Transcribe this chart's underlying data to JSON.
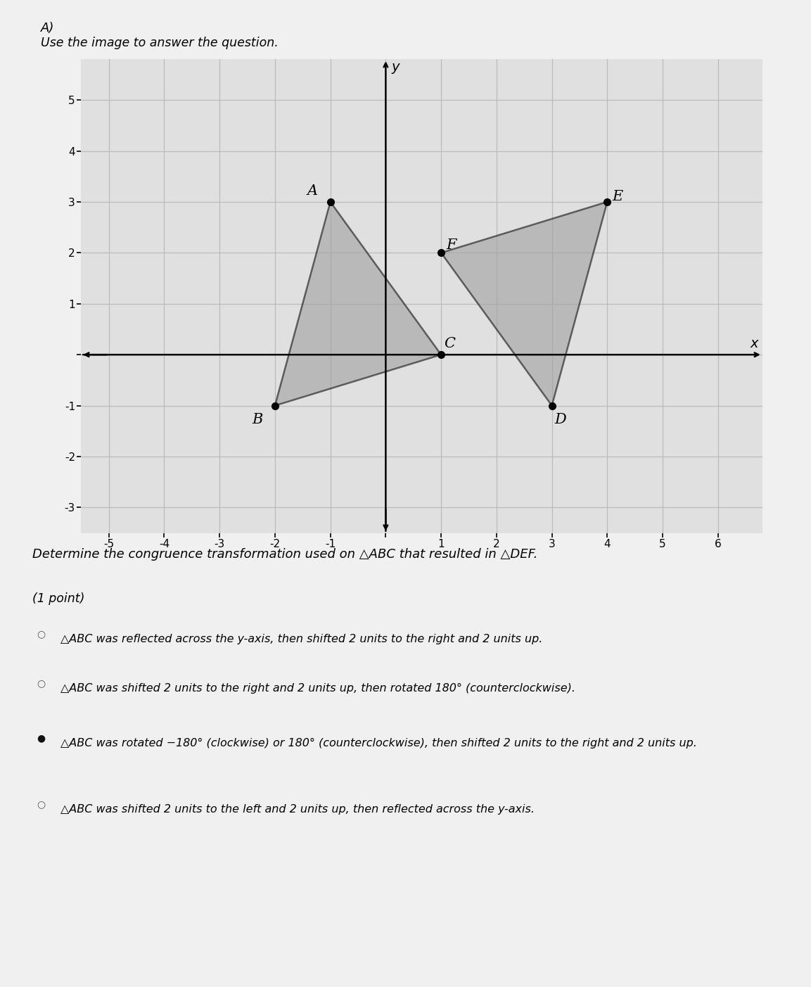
{
  "title_label": "A)",
  "subtitle": "Use the image to answer the question.",
  "triangle_ABC": {
    "A": [
      -1,
      3
    ],
    "B": [
      -2,
      -1
    ],
    "C": [
      1,
      0
    ],
    "color": "#a0a0a0",
    "alpha": 0.6,
    "edge_color": "#111111"
  },
  "triangle_DEF": {
    "D": [
      3,
      -1
    ],
    "E": [
      4,
      3
    ],
    "F": [
      1,
      2
    ],
    "color": "#a0a0a0",
    "alpha": 0.6,
    "edge_color": "#111111"
  },
  "xlim": [
    -5.5,
    6.8
  ],
  "ylim": [
    -3.5,
    5.8
  ],
  "xticks": [
    -5,
    -4,
    -3,
    -2,
    -1,
    0,
    1,
    2,
    3,
    4,
    5,
    6
  ],
  "yticks": [
    -3,
    -2,
    -1,
    0,
    1,
    2,
    3,
    4,
    5
  ],
  "grid_color": "#bbbbbb",
  "axis_color": "#000000",
  "graph_bg_color": "#e0e0e0",
  "page_bg_color": "#f0f0f0",
  "question_text": "Determine the congruence transformation used on △ABC that resulted in △DEF.",
  "point_label": "(1 point)",
  "options": [
    "△ABC was reflected across the y-axis, then shifted 2 units to the right and 2 units up.",
    "△ABC was shifted 2 units to the right and 2 units up, then rotated 180° (counterclockwise).",
    "△ABC was rotated −180° (clockwise) or 180° (counterclockwise), then shifted 2 units to the right and 2 units up.",
    "△ABC was shifted 2 units to the left and 2 units up, then reflected across the y-axis."
  ],
  "selected_option": 2
}
